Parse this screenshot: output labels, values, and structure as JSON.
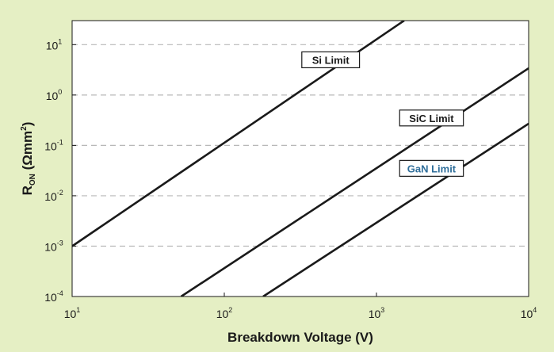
{
  "chart_data": {
    "type": "line",
    "title": "",
    "xlabel": "Breakdown Voltage (V)",
    "ylabel": {
      "main": "R",
      "subscript": "ON",
      "unit_prefix": " (Ωmm",
      "unit_exp": "2",
      "unit_suffix": ")"
    },
    "x_scale": "log",
    "y_scale": "log",
    "xlim": [
      10,
      10000
    ],
    "ylim": [
      0.0001,
      30
    ],
    "x_ticks": [
      {
        "base": "10",
        "exp": "1",
        "value": 10
      },
      {
        "base": "10",
        "exp": "2",
        "value": 100
      },
      {
        "base": "10",
        "exp": "3",
        "value": 1000
      },
      {
        "base": "10",
        "exp": "4",
        "value": 10000
      }
    ],
    "y_ticks": [
      {
        "base": "10",
        "exp": "1",
        "value": 10
      },
      {
        "base": "10",
        "exp": "0",
        "value": 1
      },
      {
        "base": "10",
        "exp": "-1",
        "value": 0.1
      },
      {
        "base": "10",
        "exp": "-2",
        "value": 0.01
      },
      {
        "base": "10",
        "exp": "-3",
        "value": 0.001
      },
      {
        "base": "10",
        "exp": "-4",
        "value": 0.0001
      }
    ],
    "grid": "horizontal-dashed",
    "legend": "none",
    "series": [
      {
        "name": "Si Limit",
        "color": "#1a1a1a",
        "label_color": "#1a1a1a",
        "x": [
          10,
          1520
        ],
        "y": [
          0.001,
          30
        ]
      },
      {
        "name": "SiC Limit",
        "color": "#1a1a1a",
        "label_color": "#1a1a1a",
        "x": [
          52,
          10000
        ],
        "y": [
          0.0001,
          3.4
        ]
      },
      {
        "name": "GaN Limit",
        "color": "#1a1a1a",
        "label_color": "#2f6e9a",
        "x": [
          180,
          10000
        ],
        "y": [
          0.0001,
          0.27
        ]
      }
    ],
    "annotations": [
      {
        "series": 0,
        "text": "Si Limit",
        "x": 500,
        "y": 5
      },
      {
        "series": 1,
        "text": "SiC Limit",
        "x": 2300,
        "y": 0.35
      },
      {
        "series": 2,
        "text": "GaN Limit",
        "x": 2300,
        "y": 0.035
      }
    ],
    "colors": {
      "background": "#e5efc4",
      "plot_background": "#ffffff",
      "grid": "#b8b8b8",
      "axis": "#1a1a1a"
    }
  }
}
